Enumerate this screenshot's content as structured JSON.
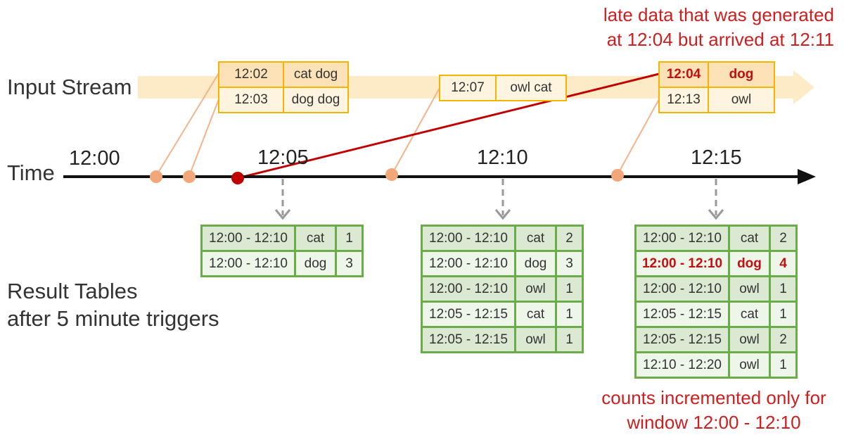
{
  "labels": {
    "input_stream": "Input Stream",
    "time": "Time",
    "result_line1": "Result Tables",
    "result_line2": "after 5 minute triggers"
  },
  "ticks": [
    "12:00",
    "12:05",
    "12:10",
    "12:15"
  ],
  "notes": {
    "late_line1": "late data that was generated",
    "late_line2": "at 12:04 but arrived at 12:11",
    "counts_line1": "counts incremented only for",
    "counts_line2": "window 12:00 - 12:10"
  },
  "events": [
    {
      "rows": [
        {
          "time": "12:02",
          "words": "cat dog"
        },
        {
          "time": "12:03",
          "words": "dog dog"
        }
      ]
    },
    {
      "rows": [
        {
          "time": "12:07",
          "words": "owl cat"
        }
      ]
    },
    {
      "rows": [
        {
          "time": "12:04",
          "words": "dog",
          "late": true
        },
        {
          "time": "12:13",
          "words": "owl"
        }
      ]
    }
  ],
  "result_tables": [
    {
      "trigger": "12:05",
      "rows": [
        {
          "window": "12:00 - 12:10",
          "word": "cat",
          "count": "1"
        },
        {
          "window": "12:00 - 12:10",
          "word": "dog",
          "count": "3"
        }
      ]
    },
    {
      "trigger": "12:10",
      "rows": [
        {
          "window": "12:00 - 12:10",
          "word": "cat",
          "count": "2"
        },
        {
          "window": "12:00 - 12:10",
          "word": "dog",
          "count": "3"
        },
        {
          "window": "12:00 - 12:10",
          "word": "owl",
          "count": "1"
        },
        {
          "window": "12:05 - 12:15",
          "word": "cat",
          "count": "1"
        },
        {
          "window": "12:05 - 12:15",
          "word": "owl",
          "count": "1"
        }
      ]
    },
    {
      "trigger": "12:15",
      "rows": [
        {
          "window": "12:00 - 12:10",
          "word": "cat",
          "count": "2"
        },
        {
          "window": "12:00 - 12:10",
          "word": "dog",
          "count": "4",
          "highlight": true
        },
        {
          "window": "12:00 - 12:10",
          "word": "owl",
          "count": "1"
        },
        {
          "window": "12:05 - 12:15",
          "word": "cat",
          "count": "1"
        },
        {
          "window": "12:05 - 12:15",
          "word": "owl",
          "count": "2"
        },
        {
          "window": "12:10 - 12:20",
          "word": "owl",
          "count": "1"
        }
      ]
    }
  ],
  "colors": {
    "stream_band": "#fdebc8",
    "arrival_dot": "#f2a77a",
    "late_dot": "#c00000",
    "late_line": "#c00000",
    "table_border": "#6aab4a",
    "event_border": "#f5b400"
  }
}
